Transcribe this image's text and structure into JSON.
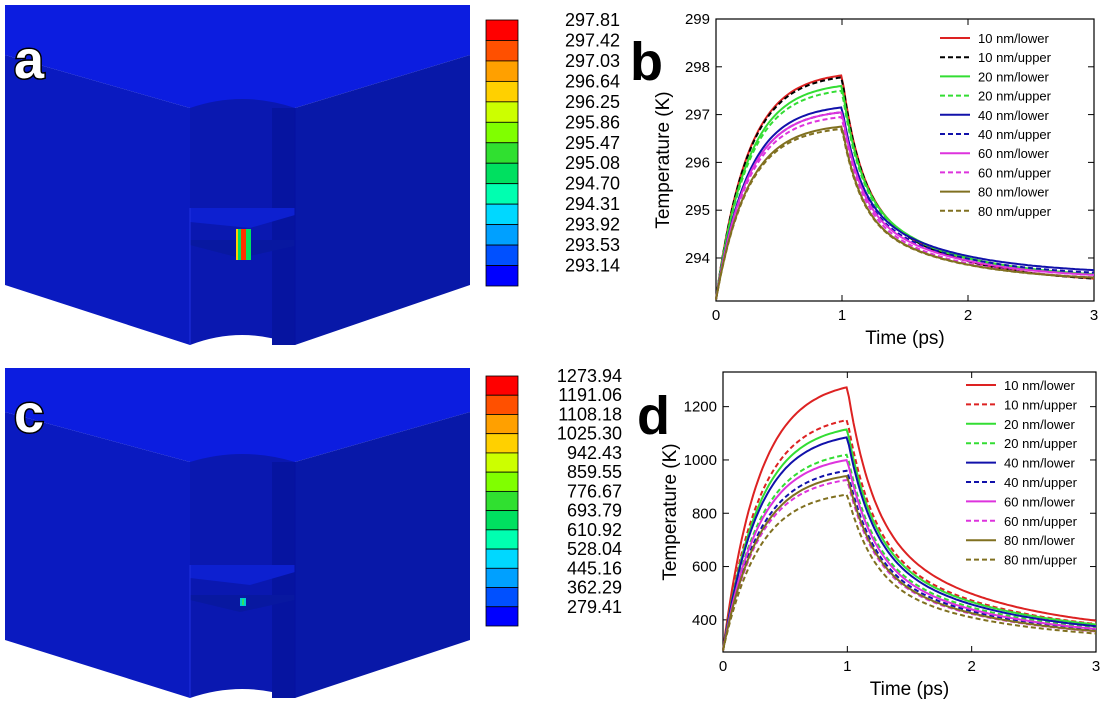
{
  "panels": {
    "a": {
      "letter": "a",
      "colorbar": [
        "297.81",
        "297.42",
        "297.03",
        "296.64",
        "296.25",
        "295.86",
        "295.47",
        "295.08",
        "294.70",
        "294.31",
        "293.92",
        "293.53",
        "293.14"
      ]
    },
    "b": {
      "letter": "b"
    },
    "c": {
      "letter": "c",
      "colorbar": [
        "1273.94",
        "1191.06",
        "1108.18",
        "1025.30",
        "942.43",
        "859.55",
        "776.67",
        "693.79",
        "610.92",
        "528.04",
        "445.16",
        "362.29",
        "279.41"
      ]
    },
    "d": {
      "letter": "d"
    }
  },
  "colorbar_colors": [
    "#ff0000",
    "#ff5000",
    "#ffa000",
    "#ffd000",
    "#ccff00",
    "#80ff00",
    "#30e030",
    "#00e060",
    "#00ffb0",
    "#00d8ff",
    "#00a0ff",
    "#0050ff",
    "#0000ff"
  ],
  "model_colors": {
    "top": "#0b1bd8",
    "front": "#0a1ab8",
    "side": "#0916a0",
    "hole": "#0a18b0"
  },
  "chart_data": [
    {
      "type": "line",
      "panel": "b",
      "xlabel": "Time (ps)",
      "ylabel": "Temperature (K)",
      "xlim": [
        0,
        3
      ],
      "ylim": [
        293.1,
        299
      ],
      "xticks": [
        0,
        1,
        2,
        3
      ],
      "yticks": [
        294,
        295,
        296,
        297,
        298,
        299
      ],
      "legend": "top-right",
      "series": [
        {
          "name": "10 nm/lower",
          "color": "#dd2222",
          "dash": false,
          "peak": 297.82,
          "end": 293.45
        },
        {
          "name": "10 nm/upper",
          "color": "#000000",
          "dash": true,
          "peak": 297.78,
          "end": 293.45
        },
        {
          "name": "20 nm/lower",
          "color": "#33dd33",
          "dash": false,
          "peak": 297.6,
          "end": 293.55
        },
        {
          "name": "20 nm/upper",
          "color": "#33dd33",
          "dash": true,
          "peak": 297.5,
          "end": 293.55
        },
        {
          "name": "40 nm/lower",
          "color": "#1111aa",
          "dash": false,
          "peak": 297.15,
          "end": 293.65
        },
        {
          "name": "40 nm/upper",
          "color": "#1111aa",
          "dash": true,
          "peak": 297.05,
          "end": 293.6
        },
        {
          "name": "60 nm/lower",
          "color": "#dd33dd",
          "dash": false,
          "peak": 297.05,
          "end": 293.55
        },
        {
          "name": "60 nm/upper",
          "color": "#dd33dd",
          "dash": true,
          "peak": 296.95,
          "end": 293.5
        },
        {
          "name": "80 nm/lower",
          "color": "#807020",
          "dash": false,
          "peak": 296.75,
          "end": 293.5
        },
        {
          "name": "80 nm/upper",
          "color": "#807020",
          "dash": true,
          "peak": 296.7,
          "end": 293.5
        }
      ]
    },
    {
      "type": "line",
      "panel": "d",
      "xlabel": "Time (ps)",
      "ylabel": "Temperature (K)",
      "xlim": [
        0,
        3
      ],
      "ylim": [
        279.4,
        1330
      ],
      "xticks": [
        0,
        1,
        2,
        3
      ],
      "yticks": [
        400,
        600,
        800,
        1000,
        1200
      ],
      "legend": "top-right",
      "series": [
        {
          "name": "10 nm/lower",
          "color": "#dd2222",
          "dash": false,
          "peak": 1273,
          "end": 340
        },
        {
          "name": "10 nm/upper",
          "color": "#dd2222",
          "dash": true,
          "peak": 1150,
          "end": 335
        },
        {
          "name": "20 nm/lower",
          "color": "#33dd33",
          "dash": false,
          "peak": 1115,
          "end": 335
        },
        {
          "name": "20 nm/upper",
          "color": "#33dd33",
          "dash": true,
          "peak": 1020,
          "end": 330
        },
        {
          "name": "40 nm/lower",
          "color": "#1111aa",
          "dash": false,
          "peak": 1085,
          "end": 330
        },
        {
          "name": "40 nm/upper",
          "color": "#1111aa",
          "dash": true,
          "peak": 960,
          "end": 325
        },
        {
          "name": "60 nm/lower",
          "color": "#dd33dd",
          "dash": false,
          "peak": 1000,
          "end": 325
        },
        {
          "name": "60 nm/upper",
          "color": "#dd33dd",
          "dash": true,
          "peak": 925,
          "end": 320
        },
        {
          "name": "80 nm/lower",
          "color": "#807020",
          "dash": false,
          "peak": 940,
          "end": 320
        },
        {
          "name": "80 nm/upper",
          "color": "#807020",
          "dash": true,
          "peak": 870,
          "end": 315
        }
      ]
    }
  ]
}
